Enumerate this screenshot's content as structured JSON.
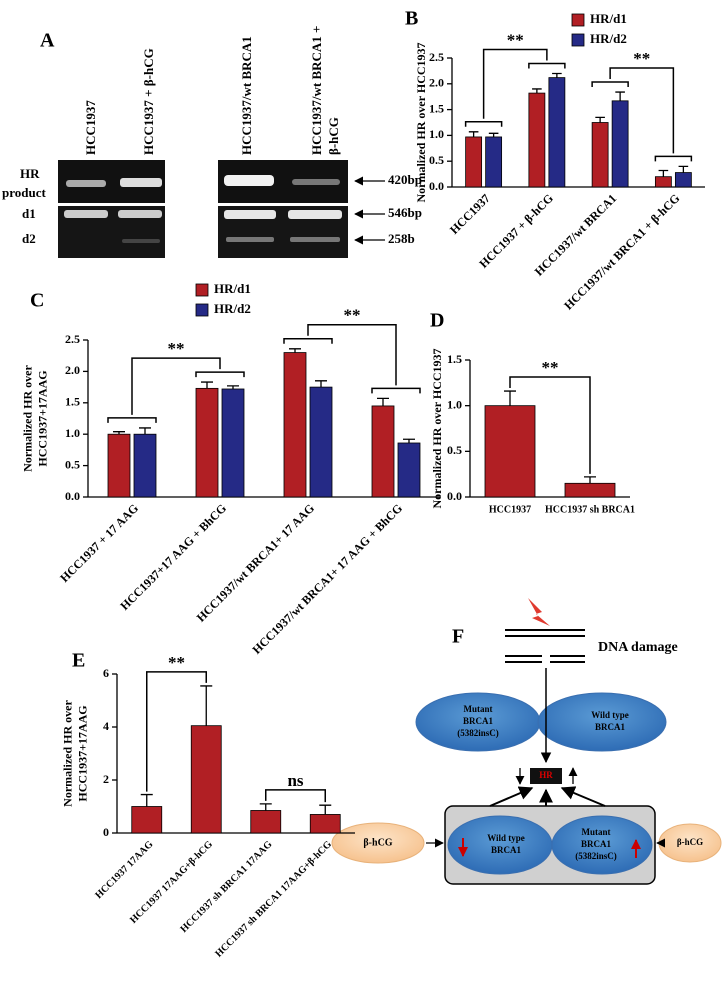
{
  "gel": {
    "panel_label": "A",
    "lanes": [
      [
        "HCC1937"
      ],
      [
        "HCC1937 + β-hCG"
      ],
      [
        "HCC1937/wt BRCA1"
      ],
      [
        "HCC1937/wt BRCA1 +",
        "β-hCG"
      ]
    ],
    "row_labels": {
      "hr": [
        "HR",
        "product"
      ],
      "d1": "d1",
      "d2": "d2"
    },
    "band_labels": [
      "420bp",
      "546bp",
      "258b"
    ]
  },
  "chart_data": [
    {
      "type": "bar",
      "panel_label": "B",
      "ylabel": [
        "Normalized HR over HCC1937"
      ],
      "categories": [
        "HCC1937",
        "HCC1937 + β-hCG",
        "HCC1937/wt BRCA1",
        "HCC1937/wt BRCA1 + β-hCG"
      ],
      "series": [
        {
          "name": "HR/d1",
          "color": "#b11f24",
          "values": [
            0.97,
            1.82,
            1.25,
            0.2
          ],
          "errors": [
            0.1,
            0.08,
            0.1,
            0.12
          ]
        },
        {
          "name": "HR/d2",
          "color": "#252a86",
          "values": [
            0.97,
            2.12,
            1.67,
            0.28
          ],
          "errors": [
            0.07,
            0.08,
            0.17,
            0.12
          ]
        }
      ],
      "ylim": [
        0,
        2.5
      ],
      "yticks": [
        {
          "value": 0,
          "label": "0.0"
        },
        0.5,
        {
          "value": 1,
          "label": "1.0"
        },
        1.5,
        {
          "value": 2,
          "label": "2.0"
        },
        2.5
      ],
      "legend": "upper right",
      "annotations": [
        "**",
        "**"
      ]
    },
    {
      "type": "bar",
      "panel_label": "C",
      "ylabel": [
        "Normalized HR over",
        "HCC1937+17AAG"
      ],
      "categories": [
        "HCC1937 + 17 AAG",
        "HCC1937+17 AAG + BhCG",
        "HCC1937/wt BRCA1+ 17 AAG",
        "HCC1937/wt BRCA1+ 17 AAG + BhCG"
      ],
      "series": [
        {
          "name": "HR/d1",
          "color": "#b11f24",
          "values": [
            1.0,
            1.73,
            2.3,
            1.45
          ],
          "errors": [
            0.04,
            0.1,
            0.06,
            0.12
          ]
        },
        {
          "name": "HR/d2",
          "color": "#252a86",
          "values": [
            1.0,
            1.72,
            1.75,
            0.86
          ],
          "errors": [
            0.1,
            0.05,
            0.1,
            0.06
          ]
        }
      ],
      "ylim": [
        0,
        2.5
      ],
      "yticks": [
        {
          "value": 0,
          "label": "0.0"
        },
        0.5,
        {
          "value": 1,
          "label": "1.0"
        },
        1.5,
        {
          "value": 2,
          "label": "2.0"
        },
        2.5
      ],
      "legend": "upper center",
      "annotations": [
        "**",
        "**"
      ]
    },
    {
      "type": "bar",
      "panel_label": "D",
      "ylabel": [
        "Normalized HR over HCC1937"
      ],
      "categories": [
        "HCC1937",
        "HCC1937 sh BRCA1"
      ],
      "values": [
        1.0,
        0.15
      ],
      "errors": [
        0.16,
        0.07
      ],
      "color": "#b11f24",
      "ylim": [
        0,
        1.5
      ],
      "yticks": [
        {
          "value": 0,
          "label": "0.0"
        },
        0.5,
        {
          "value": 1,
          "label": "1.0"
        },
        1.5
      ],
      "annotations": [
        "**"
      ]
    },
    {
      "type": "bar",
      "panel_label": "E",
      "ylabel": [
        "Normalized HR over",
        "HCC1937+17AAG"
      ],
      "categories": [
        "HCC1937 17AAG",
        "HCC1937 17AAG+β-hCG",
        "HCC1937 sh BRCA1 17AAG",
        "HCC1937 sh BRCA1 17AAG+β-hCG"
      ],
      "values": [
        1.0,
        4.05,
        0.85,
        0.7
      ],
      "errors": [
        0.45,
        1.5,
        0.25,
        0.35
      ],
      "color": "#b11f24",
      "ylim": [
        0,
        6
      ],
      "yticks": [
        0,
        2,
        4,
        6
      ],
      "annotations": [
        "**",
        "ns"
      ]
    }
  ],
  "diagram": {
    "panel_label": "F",
    "damage": "DNA damage",
    "top_left": [
      "Mutant",
      "BRCA1",
      "(5382insC)"
    ],
    "top_right": [
      "Wild type",
      "BRCA1"
    ],
    "hr": "HR",
    "box_left": [
      "Wild type",
      "BRCA1"
    ],
    "box_right": [
      "Mutant",
      "BRCA1",
      "(5382insC)"
    ],
    "hcg_left": "β-hCG",
    "hcg_right": "β-hCG"
  }
}
